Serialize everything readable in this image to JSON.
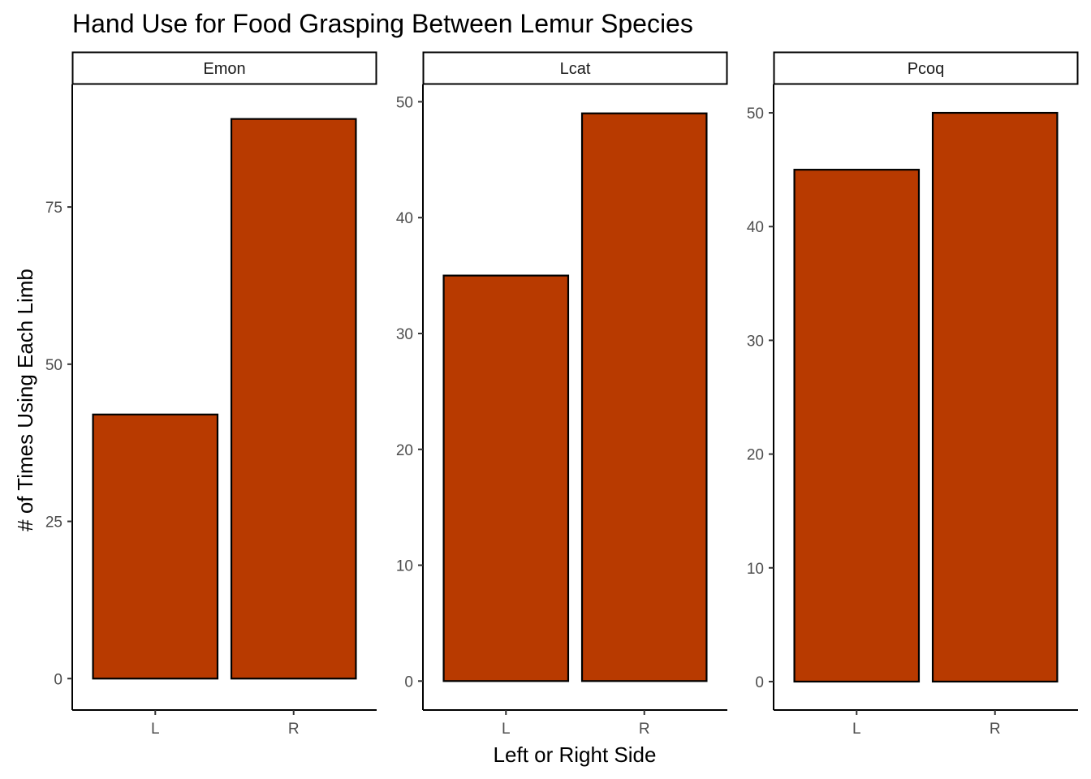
{
  "chart_data": {
    "type": "bar",
    "title": "Hand Use for Food Grasping Between Lemur Species",
    "xlabel": "Left or Right Side",
    "ylabel": "# of Times Using Each Limb",
    "categories": [
      "L",
      "R"
    ],
    "bar_fill": "#B83A00",
    "bar_stroke": "#000000",
    "grid": false,
    "facets": [
      {
        "name": "Emon",
        "values": [
          42,
          89
        ],
        "ylim": [
          -5,
          94.5
        ],
        "yticks": [
          0,
          25,
          50,
          75
        ]
      },
      {
        "name": "Lcat",
        "values": [
          35,
          49
        ],
        "ylim": [
          -2.5,
          51.5
        ],
        "yticks": [
          0,
          10,
          20,
          30,
          40,
          50
        ]
      },
      {
        "name": "Pcoq",
        "values": [
          45,
          50
        ],
        "ylim": [
          -2.5,
          52.5
        ],
        "yticks": [
          0,
          10,
          20,
          30,
          40,
          50
        ]
      }
    ]
  }
}
